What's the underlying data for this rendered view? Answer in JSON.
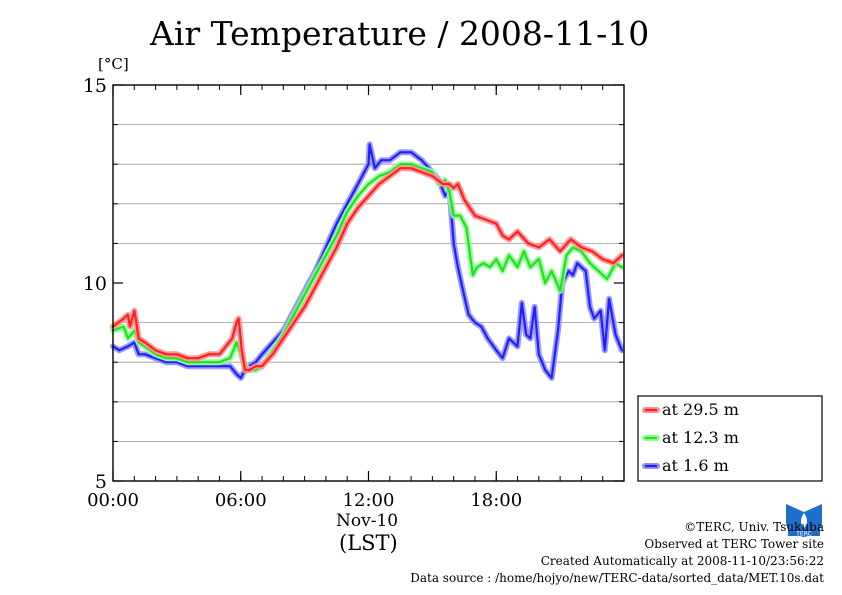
{
  "chart_data": {
    "type": "line",
    "title": "Air Temperature / 2008-11-10",
    "unit_label": "[°C]",
    "xlabel_date": "Nov-10",
    "xlabel_tz": "(LST)",
    "xlim": [
      0,
      24
    ],
    "ylim": [
      5,
      15
    ],
    "x_ticks": [
      0,
      6,
      12,
      18
    ],
    "x_tick_labels": [
      "00:00",
      "06:00",
      "12:00",
      "18:00"
    ],
    "y_ticks": [
      5,
      10,
      15
    ],
    "y_tick_labels": [
      "5",
      "10",
      "15"
    ],
    "y_grid": [
      6,
      7,
      8,
      9,
      11,
      12,
      13,
      14
    ],
    "grid": true,
    "legend_position": "right, below plot area",
    "series": [
      {
        "name": "at 29.5 m",
        "color": "#ff2020",
        "glow": "#ff9090",
        "x": [
          0,
          0.5,
          0.7,
          0.8,
          1.0,
          1.1,
          1.2,
          1.5,
          2.0,
          2.5,
          3.0,
          3.5,
          4.0,
          4.5,
          5.0,
          5.3,
          5.6,
          5.8,
          5.9,
          6.05,
          6.2,
          6.4,
          6.7,
          7.0,
          7.5,
          8.0,
          8.5,
          9.0,
          9.5,
          10.0,
          10.5,
          11.0,
          11.5,
          12.0,
          12.5,
          13.0,
          13.5,
          14.0,
          14.5,
          15.0,
          15.5,
          15.8,
          16.0,
          16.2,
          16.5,
          17.0,
          17.5,
          18.0,
          18.3,
          18.6,
          19.0,
          19.5,
          20.0,
          20.5,
          21.0,
          21.5,
          22.0,
          22.5,
          23.0,
          23.5,
          23.9
        ],
        "y": [
          8.9,
          9.1,
          9.2,
          8.9,
          9.3,
          9.0,
          8.6,
          8.5,
          8.3,
          8.2,
          8.2,
          8.1,
          8.1,
          8.2,
          8.2,
          8.4,
          8.6,
          9.0,
          9.1,
          8.3,
          7.8,
          7.8,
          7.9,
          7.9,
          8.2,
          8.6,
          9.0,
          9.4,
          9.9,
          10.4,
          10.9,
          11.5,
          11.9,
          12.2,
          12.5,
          12.7,
          12.9,
          12.9,
          12.8,
          12.7,
          12.5,
          12.5,
          12.4,
          12.5,
          12.1,
          11.7,
          11.6,
          11.5,
          11.2,
          11.1,
          11.3,
          11.0,
          10.9,
          11.1,
          10.8,
          11.1,
          10.9,
          10.8,
          10.6,
          10.5,
          10.7
        ]
      },
      {
        "name": "at 12.3 m",
        "color": "#20e020",
        "glow": "#90ff90",
        "x": [
          0,
          0.5,
          0.7,
          1.0,
          1.2,
          1.5,
          2.0,
          2.5,
          3.0,
          3.5,
          4.0,
          4.5,
          5.0,
          5.5,
          5.8,
          6.0,
          6.2,
          6.4,
          6.7,
          7.0,
          7.5,
          8.0,
          8.5,
          9.0,
          9.5,
          10.0,
          10.5,
          11.0,
          11.5,
          12.0,
          12.5,
          13.0,
          13.5,
          14.0,
          14.5,
          15.0,
          15.3,
          15.6,
          15.8,
          16.0,
          16.3,
          16.6,
          16.9,
          17.1,
          17.4,
          17.7,
          18.0,
          18.3,
          18.6,
          19.0,
          19.3,
          19.6,
          20.0,
          20.3,
          20.6,
          21.0,
          21.3,
          21.6,
          22.0,
          22.4,
          22.8,
          23.2,
          23.6,
          23.9
        ],
        "y": [
          8.8,
          8.9,
          8.6,
          8.8,
          8.5,
          8.4,
          8.2,
          8.1,
          8.1,
          8.0,
          8.0,
          8.0,
          8.0,
          8.1,
          8.5,
          8.2,
          7.9,
          7.8,
          7.8,
          7.9,
          8.3,
          8.7,
          9.2,
          9.7,
          10.2,
          10.7,
          11.2,
          11.8,
          12.2,
          12.5,
          12.7,
          12.8,
          13.0,
          13.0,
          12.9,
          12.8,
          12.5,
          12.6,
          12.3,
          11.7,
          11.7,
          11.4,
          10.2,
          10.4,
          10.5,
          10.4,
          10.6,
          10.3,
          10.7,
          10.4,
          10.8,
          10.4,
          10.6,
          10.0,
          10.3,
          9.8,
          10.7,
          10.9,
          10.8,
          10.5,
          10.3,
          10.1,
          10.5,
          10.4
        ]
      },
      {
        "name": "at 1.6 m",
        "color": "#2020ff",
        "glow": "#9090ff",
        "x": [
          0,
          0.3,
          0.7,
          1.0,
          1.2,
          1.5,
          2.0,
          2.5,
          3.0,
          3.5,
          4.0,
          4.5,
          5.0,
          5.5,
          5.8,
          6.0,
          6.2,
          6.4,
          6.7,
          7.0,
          7.5,
          8.0,
          8.5,
          9.0,
          9.5,
          10.0,
          10.5,
          11.0,
          11.5,
          12.0,
          12.05,
          12.3,
          12.6,
          13.0,
          13.5,
          14.0,
          14.5,
          15.0,
          15.3,
          15.6,
          15.8,
          16.0,
          16.2,
          16.4,
          16.7,
          17.0,
          17.3,
          17.6,
          18.0,
          18.3,
          18.6,
          19.0,
          19.2,
          19.4,
          19.6,
          19.8,
          20.0,
          20.3,
          20.6,
          20.9,
          21.1,
          21.4,
          21.6,
          21.8,
          22.0,
          22.2,
          22.4,
          22.6,
          22.9,
          23.1,
          23.3,
          23.6,
          23.9
        ],
        "y": [
          8.4,
          8.3,
          8.4,
          8.5,
          8.2,
          8.2,
          8.1,
          8.0,
          8.0,
          7.9,
          7.9,
          7.9,
          7.9,
          7.9,
          7.7,
          7.6,
          7.8,
          7.9,
          8.0,
          8.2,
          8.5,
          8.8,
          9.3,
          9.8,
          10.3,
          10.9,
          11.5,
          12.0,
          12.5,
          13.0,
          13.5,
          12.9,
          13.1,
          13.1,
          13.3,
          13.3,
          13.1,
          12.8,
          12.6,
          12.2,
          12.4,
          11.0,
          10.4,
          9.9,
          9.2,
          9.0,
          8.9,
          8.6,
          8.3,
          8.1,
          8.6,
          8.4,
          9.5,
          8.7,
          8.6,
          9.4,
          8.2,
          7.8,
          7.6,
          8.8,
          10.0,
          10.3,
          10.2,
          10.5,
          10.4,
          10.3,
          9.4,
          9.1,
          9.3,
          8.3,
          9.6,
          8.7,
          8.3
        ]
      }
    ],
    "legend": [
      "at 29.5 m",
      "at 12.3 m",
      "at 1.6 m"
    ]
  },
  "credits": {
    "copyright": "©TERC, Univ. Tsukuba",
    "site": "Observed at TERC Tower site",
    "created": "Created Automatically at 2008-11-10/23:56:22",
    "source": "Data source : /home/hojyo/new/TERC-data/sorted_data/MET.10s.dat"
  },
  "logo": {
    "text": "TERC",
    "icon": "terc-logo-icon"
  }
}
